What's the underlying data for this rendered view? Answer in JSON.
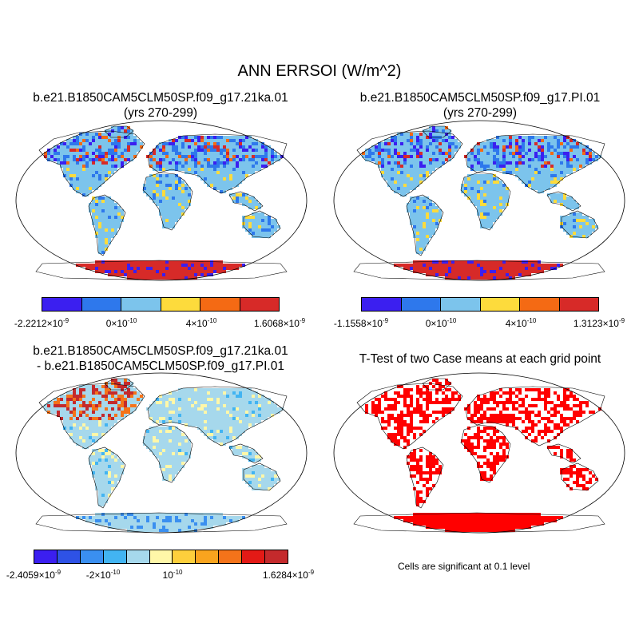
{
  "figure": {
    "title": "ANN ERRSOI (W/m^2)"
  },
  "panels": [
    {
      "id": "case1",
      "title_line1": "b.e21.B1850CAM5CLM50SP.f09_g17.21ka.01",
      "title_line2": "(yrs 270-299)",
      "colorbar": {
        "colors": [
          "#3b1ff0",
          "#2e78ec",
          "#7cc4ec",
          "#fddb3c",
          "#f46a14",
          "#d72a28"
        ],
        "labels": [
          {
            "mant": "-2.2212×10",
            "exp": "-9"
          },
          {
            "mant": "0×10",
            "exp": "-10"
          },
          {
            "mant": "4×10",
            "exp": "-10"
          },
          {
            "mant": "1.6068×10",
            "exp": "-9"
          }
        ]
      }
    },
    {
      "id": "case2",
      "title_line1": "b.e21.B1850CAM5CLM50SP.f09_g17.PI.01",
      "title_line2": "(yrs 270-299)",
      "colorbar": {
        "colors": [
          "#3b1ff0",
          "#2e78ec",
          "#7cc4ec",
          "#fddb3c",
          "#f46a14",
          "#d72a28"
        ],
        "labels": [
          {
            "mant": "-1.1558×10",
            "exp": "-9"
          },
          {
            "mant": "0×10",
            "exp": "-10"
          },
          {
            "mant": "4×10",
            "exp": "-10"
          },
          {
            "mant": "1.3123×10",
            "exp": "-9"
          }
        ]
      }
    },
    {
      "id": "difference",
      "title_line1": "b.e21.B1850CAM5CLM50SP.f09_g17.21ka.01",
      "title_line2": "- b.e21.B1850CAM5CLM50SP.f09_g17.PI.01",
      "colorbar": {
        "colors": [
          "#3b1ff0",
          "#2e52e6",
          "#3a8ff0",
          "#42b4f2",
          "#a6d8ec",
          "#fff7a8",
          "#fdcf3c",
          "#f9a41e",
          "#f4731a",
          "#e31a16",
          "#c42a2c"
        ],
        "labels": [
          {
            "mant": "-2.4059×10",
            "exp": "-9"
          },
          {
            "mant": "-2×10",
            "exp": "-10"
          },
          {
            "mant": "10",
            "exp": "-10"
          },
          {
            "mant": "1.6284×10",
            "exp": "-9"
          }
        ]
      }
    },
    {
      "id": "ttest",
      "title_line1": "T-Test of two Case means at each grid point",
      "note": "Cells are significant at 0.1 level",
      "significant_color": "#ff0000"
    }
  ]
}
